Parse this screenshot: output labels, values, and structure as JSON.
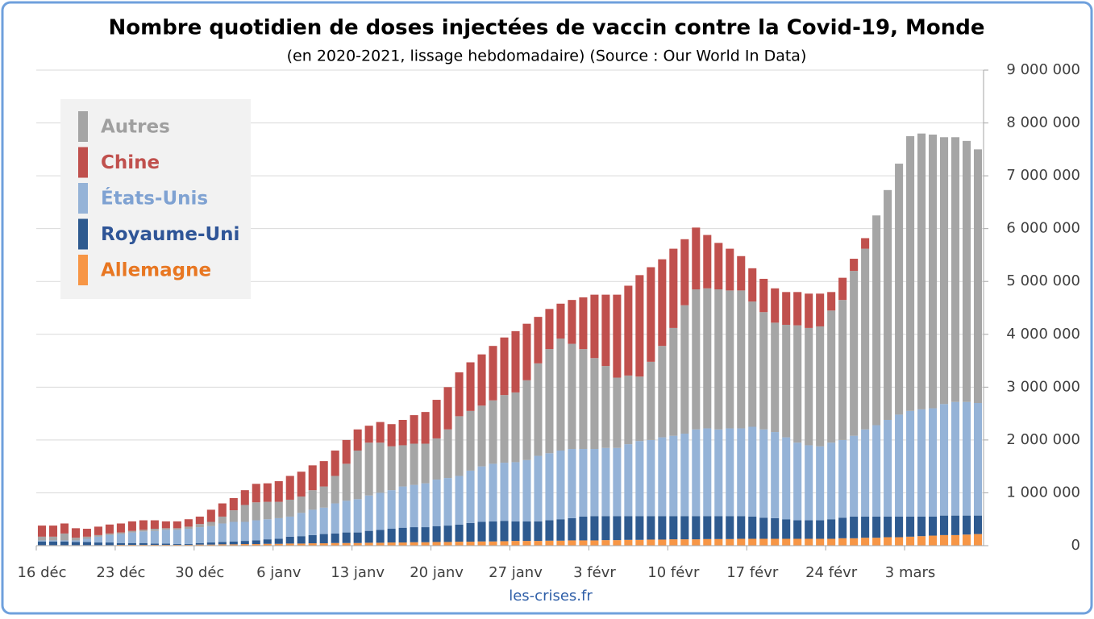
{
  "chart_data": {
    "type": "stacked_bar",
    "title": "Nombre quotidien de doses injectées de vaccin contre la Covid-19, Monde",
    "subtitle": "(en 2020-2021, lissage hebdomadaire) (Source : Our World In Data)",
    "source": "les-crises.fr",
    "categories": [
      "16 déc",
      null,
      null,
      null,
      null,
      null,
      null,
      "23 déc",
      null,
      null,
      null,
      null,
      null,
      null,
      "30 déc",
      null,
      null,
      null,
      null,
      null,
      null,
      "6 janv",
      null,
      null,
      null,
      null,
      null,
      null,
      "13 janv",
      null,
      null,
      null,
      null,
      null,
      null,
      "20 janv",
      null,
      null,
      null,
      null,
      null,
      null,
      "27 janv",
      null,
      null,
      null,
      null,
      null,
      null,
      "3 févr",
      null,
      null,
      null,
      null,
      null,
      null,
      "10 févr",
      null,
      null,
      null,
      null,
      null,
      null,
      "17 févr",
      null,
      null,
      null,
      null,
      null,
      null,
      "24 févr",
      null,
      null,
      null,
      null,
      null,
      null,
      "3 mars",
      null,
      null,
      null,
      null,
      null,
      null
    ],
    "series": [
      {
        "name": "Autres",
        "color": "#a5a5a5",
        "text_color": "#a0a0a0",
        "values": [
          70000,
          70000,
          130000,
          50000,
          40000,
          30000,
          30000,
          30000,
          30000,
          30000,
          40000,
          30000,
          30000,
          40000,
          60000,
          80000,
          130000,
          220000,
          320000,
          340000,
          330000,
          310000,
          320000,
          310000,
          370000,
          400000,
          520000,
          700000,
          920000,
          1000000,
          950000,
          830000,
          780000,
          780000,
          750000,
          780000,
          920000,
          1130000,
          1130000,
          1150000,
          1200000,
          1280000,
          1320000,
          1510000,
          1750000,
          1970000,
          2120000,
          1990000,
          1890000,
          1720000,
          1550000,
          1330000,
          1300000,
          1220000,
          1480000,
          1730000,
          2040000,
          2430000,
          2650000,
          2650000,
          2650000,
          2610000,
          2610000,
          2370000,
          2220000,
          2070000,
          2130000,
          2220000,
          2220000,
          2270000,
          2500000,
          2650000,
          3120000,
          3420000,
          3970000,
          4350000,
          4750000,
          5200000,
          5220000,
          5180000,
          5050000,
          5010000,
          4940000,
          4800000
        ]
      },
      {
        "name": "Chine",
        "color": "#c0504d",
        "text_color": "#c0504d",
        "values": [
          210000,
          210000,
          190000,
          180000,
          150000,
          160000,
          170000,
          170000,
          180000,
          180000,
          160000,
          130000,
          130000,
          140000,
          140000,
          230000,
          250000,
          230000,
          280000,
          350000,
          350000,
          390000,
          450000,
          470000,
          470000,
          480000,
          480000,
          450000,
          400000,
          320000,
          390000,
          420000,
          480000,
          540000,
          600000,
          730000,
          800000,
          830000,
          920000,
          970000,
          1030000,
          1090000,
          1160000,
          1070000,
          880000,
          760000,
          660000,
          830000,
          980000,
          1200000,
          1350000,
          1570000,
          1700000,
          1920000,
          1790000,
          1640000,
          1500000,
          1250000,
          1170000,
          1010000,
          880000,
          790000,
          650000,
          630000,
          630000,
          650000,
          620000,
          630000,
          650000,
          620000,
          350000,
          420000,
          230000,
          200000,
          0,
          0,
          0,
          0,
          0,
          0,
          0,
          0,
          0,
          0
        ]
      },
      {
        "name": "États-Unis",
        "color": "#95b3d7",
        "text_color": "#7fa2d2",
        "values": [
          20000,
          20000,
          20000,
          30000,
          60000,
          110000,
          140000,
          170000,
          200000,
          220000,
          240000,
          260000,
          270000,
          290000,
          300000,
          310000,
          350000,
          370000,
          360000,
          380000,
          380000,
          390000,
          380000,
          440000,
          480000,
          500000,
          570000,
          600000,
          630000,
          670000,
          700000,
          730000,
          780000,
          800000,
          830000,
          880000,
          900000,
          920000,
          990000,
          1050000,
          1090000,
          1100000,
          1120000,
          1160000,
          1240000,
          1270000,
          1300000,
          1310000,
          1280000,
          1270000,
          1290000,
          1290000,
          1360000,
          1420000,
          1440000,
          1490000,
          1520000,
          1560000,
          1640000,
          1660000,
          1640000,
          1660000,
          1660000,
          1700000,
          1670000,
          1630000,
          1550000,
          1470000,
          1420000,
          1400000,
          1450000,
          1470000,
          1530000,
          1650000,
          1730000,
          1830000,
          1930000,
          2000000,
          2030000,
          2050000,
          2110000,
          2150000,
          2150000,
          2130000
        ]
      },
      {
        "name": "Royaume-Uni",
        "color": "#2e5a8f",
        "text_color": "#2f5597",
        "values": [
          70000,
          70000,
          70000,
          60000,
          60000,
          50000,
          50000,
          35000,
          35000,
          35000,
          25000,
          25000,
          15000,
          15000,
          30000,
          40000,
          45000,
          55000,
          60000,
          70000,
          85000,
          95000,
          130000,
          140000,
          155000,
          175000,
          180000,
          200000,
          200000,
          225000,
          245000,
          260000,
          280000,
          285000,
          285000,
          300000,
          310000,
          325000,
          355000,
          370000,
          380000,
          385000,
          370000,
          370000,
          370000,
          385000,
          405000,
          420000,
          450000,
          460000,
          455000,
          455000,
          450000,
          450000,
          445000,
          445000,
          440000,
          440000,
          440000,
          435000,
          435000,
          435000,
          430000,
          420000,
          400000,
          390000,
          370000,
          350000,
          350000,
          350000,
          370000,
          390000,
          410000,
          400000,
          400000,
          390000,
          390000,
          380000,
          370000,
          360000,
          370000,
          370000,
          360000,
          350000
        ]
      },
      {
        "name": "Allemagne",
        "color": "#f79646",
        "text_color": "#e87722",
        "values": [
          10000,
          10000,
          10000,
          10000,
          10000,
          10000,
          10000,
          15000,
          15000,
          15000,
          15000,
          15000,
          15000,
          15000,
          20000,
          20000,
          25000,
          25000,
          30000,
          30000,
          35000,
          35000,
          40000,
          40000,
          45000,
          45000,
          50000,
          50000,
          50000,
          55000,
          55000,
          60000,
          60000,
          65000,
          65000,
          70000,
          70000,
          75000,
          75000,
          80000,
          80000,
          85000,
          90000,
          90000,
          90000,
          95000,
          95000,
          100000,
          100000,
          100000,
          105000,
          105000,
          110000,
          110000,
          115000,
          115000,
          120000,
          120000,
          120000,
          125000,
          125000,
          125000,
          130000,
          130000,
          130000,
          130000,
          130000,
          130000,
          130000,
          130000,
          130000,
          140000,
          140000,
          150000,
          150000,
          160000,
          160000,
          170000,
          180000,
          190000,
          200000,
          200000,
          210000,
          220000
        ]
      }
    ],
    "ylim": [
      0,
      9000000
    ],
    "yticks": [
      0,
      {
        "value": 1000000,
        "label": "1 000 000"
      },
      {
        "value": 2000000,
        "label": "2 000 000"
      },
      {
        "value": 3000000,
        "label": "3 000 000"
      },
      {
        "value": 4000000,
        "label": "4 000 000"
      },
      {
        "value": 5000000,
        "label": "5 000 000"
      },
      {
        "value": 6000000,
        "label": "6 000 000"
      },
      {
        "value": 7000000,
        "label": "7 000 000"
      },
      {
        "value": 8000000,
        "label": "8 000 000"
      },
      {
        "value": 9000000,
        "label": "9 000 000"
      }
    ],
    "y_axis_side": "right",
    "grid": true,
    "legend": "upper left"
  }
}
